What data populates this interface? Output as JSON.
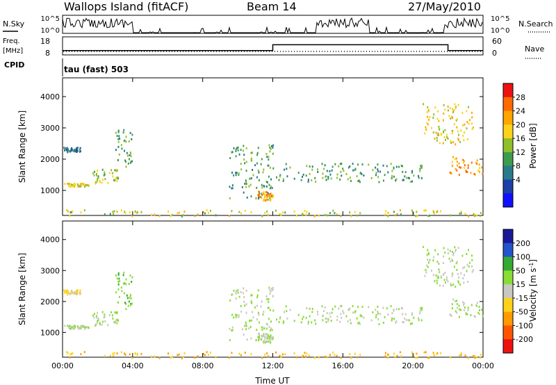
{
  "header": {
    "site": "Wallops Island (fitACF)",
    "beam": "Beam 14",
    "date": "27/May/2010"
  },
  "top_panel": {
    "left_label": "N.Sky",
    "left_tick_hi": "10^5",
    "left_tick_lo": "10^0",
    "right_tick_hi": "10^5",
    "right_tick_lo": "10^0",
    "right_label": "N.Search"
  },
  "freq_panel": {
    "left_label_1": "Freq.",
    "left_label_2": "[MHz]",
    "left_tick_hi": "18",
    "left_tick_lo": "8",
    "right_tick_hi": "60",
    "right_tick_lo": "0",
    "right_label": "Nave"
  },
  "cpid": {
    "label": "CPID",
    "text": "tau (fast) 503"
  },
  "power_colorbar": {
    "title": "Power [dB]",
    "ticks": [
      "28",
      "24",
      "20",
      "16",
      "12",
      "8",
      "4"
    ],
    "colors": [
      "#ee1111",
      "#ff6a00",
      "#ffa500",
      "#ffd21a",
      "#8fbf2a",
      "#3e9b4e",
      "#2a7a8a",
      "#1d3fa8",
      "#1010ff"
    ]
  },
  "velocity_colorbar": {
    "title": "Velocity [m s^-1]",
    "ticks": [
      "200",
      "100",
      "50",
      "15",
      "-15",
      "-50",
      "-100",
      "-200"
    ],
    "colors": [
      "#1a1a99",
      "#2255cc",
      "#33aa33",
      "#88dd33",
      "#c8c8c0",
      "#ffd21a",
      "#ff9b00",
      "#ff5500",
      "#ee1111"
    ]
  },
  "chart_data": {
    "type": "heatmap",
    "xlabel": "Time UT",
    "ylabel": "Slant Range [km]",
    "x_ticks": [
      "00:00",
      "04:00",
      "08:00",
      "12:00",
      "16:00",
      "20:00",
      "00:00"
    ],
    "y_ticks": [
      1000,
      2000,
      3000,
      4000
    ],
    "xlim_hours": [
      0,
      24
    ],
    "ylim_km": [
      200,
      4600
    ],
    "frequency_mhz": [
      {
        "start_hour": 0,
        "end_hour": 12,
        "value": 10
      },
      {
        "start_hour": 12,
        "end_hour": 22,
        "value": 14
      },
      {
        "start_hour": 22,
        "end_hour": 24,
        "value": 10
      }
    ],
    "echo_regions": [
      {
        "hour_start": 0.0,
        "hour_end": 1.5,
        "range_start": 1150,
        "range_end": 1250,
        "power_db": 18,
        "velocity": 15
      },
      {
        "hour_start": 1.5,
        "hour_end": 3.2,
        "range_start": 1250,
        "range_end": 1700,
        "power_db": 14,
        "velocity": 15
      },
      {
        "hour_start": 3.0,
        "hour_end": 4.0,
        "range_start": 1700,
        "range_end": 3000,
        "power_db": 10,
        "velocity": 50
      },
      {
        "hour_start": 0.0,
        "hour_end": 1.0,
        "range_start": 2250,
        "range_end": 2400,
        "power_db": 6,
        "velocity": -15
      },
      {
        "hour_start": 9.5,
        "hour_end": 12.0,
        "range_start": 700,
        "range_end": 2500,
        "power_db": 10,
        "velocity": 15
      },
      {
        "hour_start": 11.0,
        "hour_end": 12.0,
        "range_start": 700,
        "range_end": 1000,
        "power_db": 22,
        "velocity": 15
      },
      {
        "hour_start": 12.0,
        "hour_end": 20.5,
        "range_start": 1300,
        "range_end": 1900,
        "power_db": 10,
        "velocity": 15
      },
      {
        "hour_start": 20.5,
        "hour_end": 23.5,
        "range_start": 2500,
        "range_end": 3800,
        "power_db": 18,
        "velocity": 15
      },
      {
        "hour_start": 22.0,
        "hour_end": 24.0,
        "range_start": 1500,
        "range_end": 2100,
        "power_db": 22,
        "velocity": 15
      },
      {
        "hour_start": 0.0,
        "hour_end": 24.0,
        "range_start": 200,
        "range_end": 400,
        "power_db": 16,
        "velocity": -50
      }
    ]
  }
}
